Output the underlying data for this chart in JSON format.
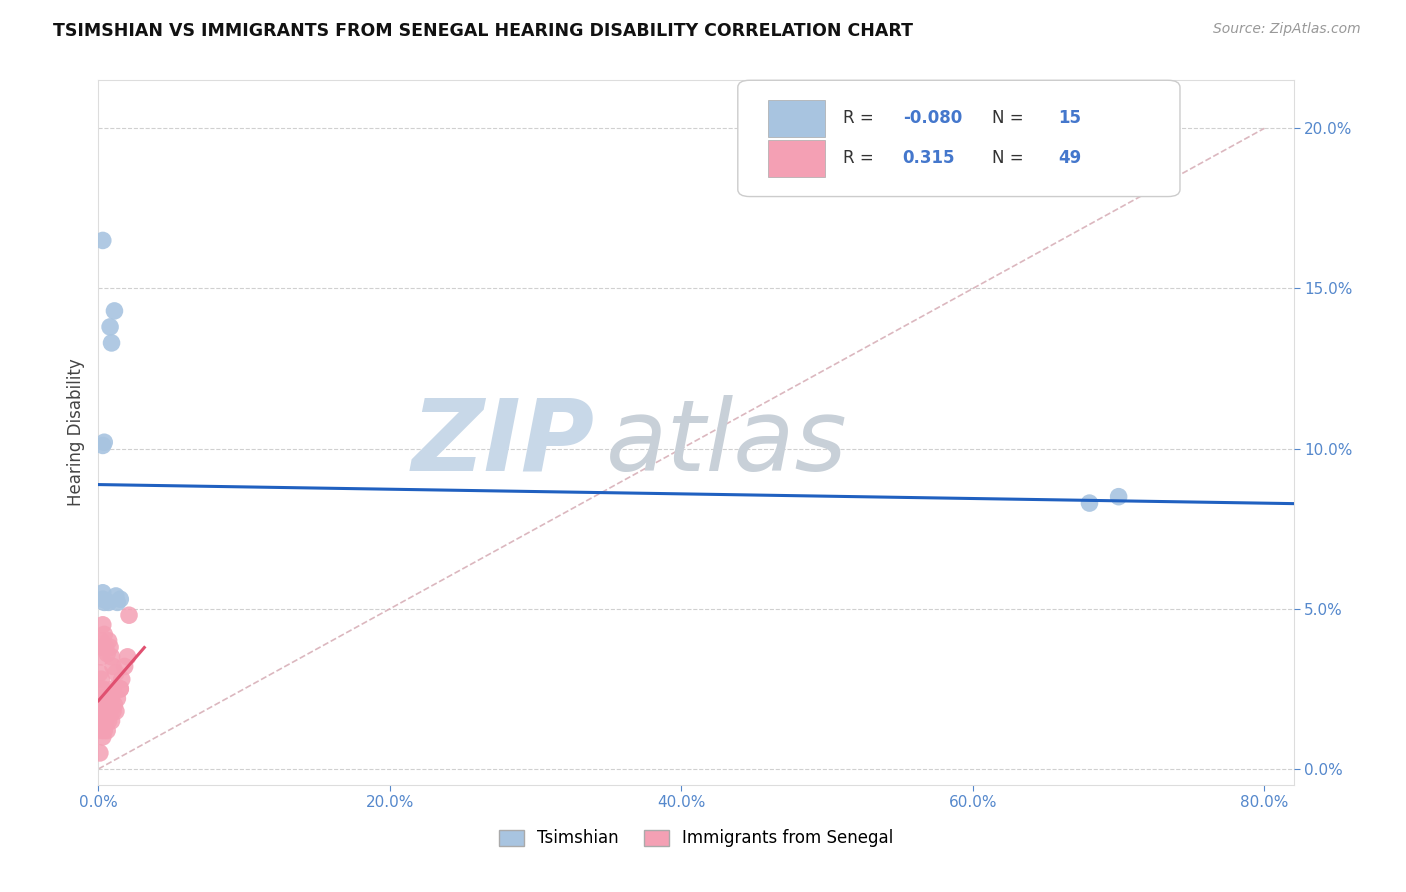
{
  "title": "TSIMSHIAN VS IMMIGRANTS FROM SENEGAL HEARING DISABILITY CORRELATION CHART",
  "source": "Source: ZipAtlas.com",
  "ylabel": "Hearing Disability",
  "legend_labels": [
    "Tsimshian",
    "Immigrants from Senegal"
  ],
  "r_blue": -0.08,
  "n_blue": 15,
  "r_pink": 0.315,
  "n_pink": 49,
  "xlim": [
    0.0,
    0.82
  ],
  "ylim": [
    -0.005,
    0.215
  ],
  "yticks": [
    0.0,
    0.05,
    0.1,
    0.15,
    0.2
  ],
  "xticks": [
    0.0,
    0.2,
    0.4,
    0.6,
    0.8
  ],
  "blue_points_x": [
    0.003,
    0.008,
    0.011,
    0.009,
    0.003,
    0.004,
    0.003,
    0.007,
    0.013,
    0.003,
    0.012,
    0.68,
    0.7,
    0.004,
    0.015
  ],
  "blue_points_y": [
    0.165,
    0.138,
    0.143,
    0.133,
    0.101,
    0.102,
    0.055,
    0.052,
    0.052,
    0.053,
    0.054,
    0.083,
    0.085,
    0.052,
    0.053
  ],
  "pink_points_x": [
    0.001,
    0.001,
    0.001,
    0.001,
    0.001,
    0.002,
    0.002,
    0.002,
    0.002,
    0.003,
    0.003,
    0.003,
    0.003,
    0.004,
    0.004,
    0.004,
    0.005,
    0.005,
    0.006,
    0.006,
    0.007,
    0.007,
    0.008,
    0.009,
    0.009,
    0.01,
    0.01,
    0.011,
    0.012,
    0.013,
    0.015,
    0.016,
    0.018,
    0.02,
    0.021,
    0.002,
    0.002,
    0.003,
    0.003,
    0.004,
    0.005,
    0.006,
    0.007,
    0.008,
    0.009,
    0.01,
    0.012,
    0.015,
    0.001
  ],
  "pink_points_y": [
    0.015,
    0.018,
    0.022,
    0.025,
    0.03,
    0.012,
    0.018,
    0.022,
    0.028,
    0.01,
    0.015,
    0.02,
    0.025,
    0.012,
    0.018,
    0.022,
    0.015,
    0.02,
    0.012,
    0.018,
    0.015,
    0.022,
    0.018,
    0.015,
    0.022,
    0.018,
    0.025,
    0.02,
    0.018,
    0.022,
    0.025,
    0.028,
    0.032,
    0.035,
    0.048,
    0.035,
    0.04,
    0.038,
    0.045,
    0.042,
    0.038,
    0.036,
    0.04,
    0.038,
    0.035,
    0.032,
    0.03,
    0.025,
    0.005
  ],
  "blue_scatter_color": "#a8c4e0",
  "pink_scatter_color": "#f4a0b4",
  "blue_line_color": "#2060c0",
  "pink_line_color": "#e05070",
  "diagonal_color": "#d8b0b8",
  "grid_color": "#d0d0d0",
  "bg_color": "#ffffff",
  "title_color": "#111111",
  "source_color": "#999999",
  "axis_label_color": "#5588cc",
  "ylabel_color": "#444444",
  "legend_text_color": "#333333",
  "legend_rn_color": "#4477cc"
}
